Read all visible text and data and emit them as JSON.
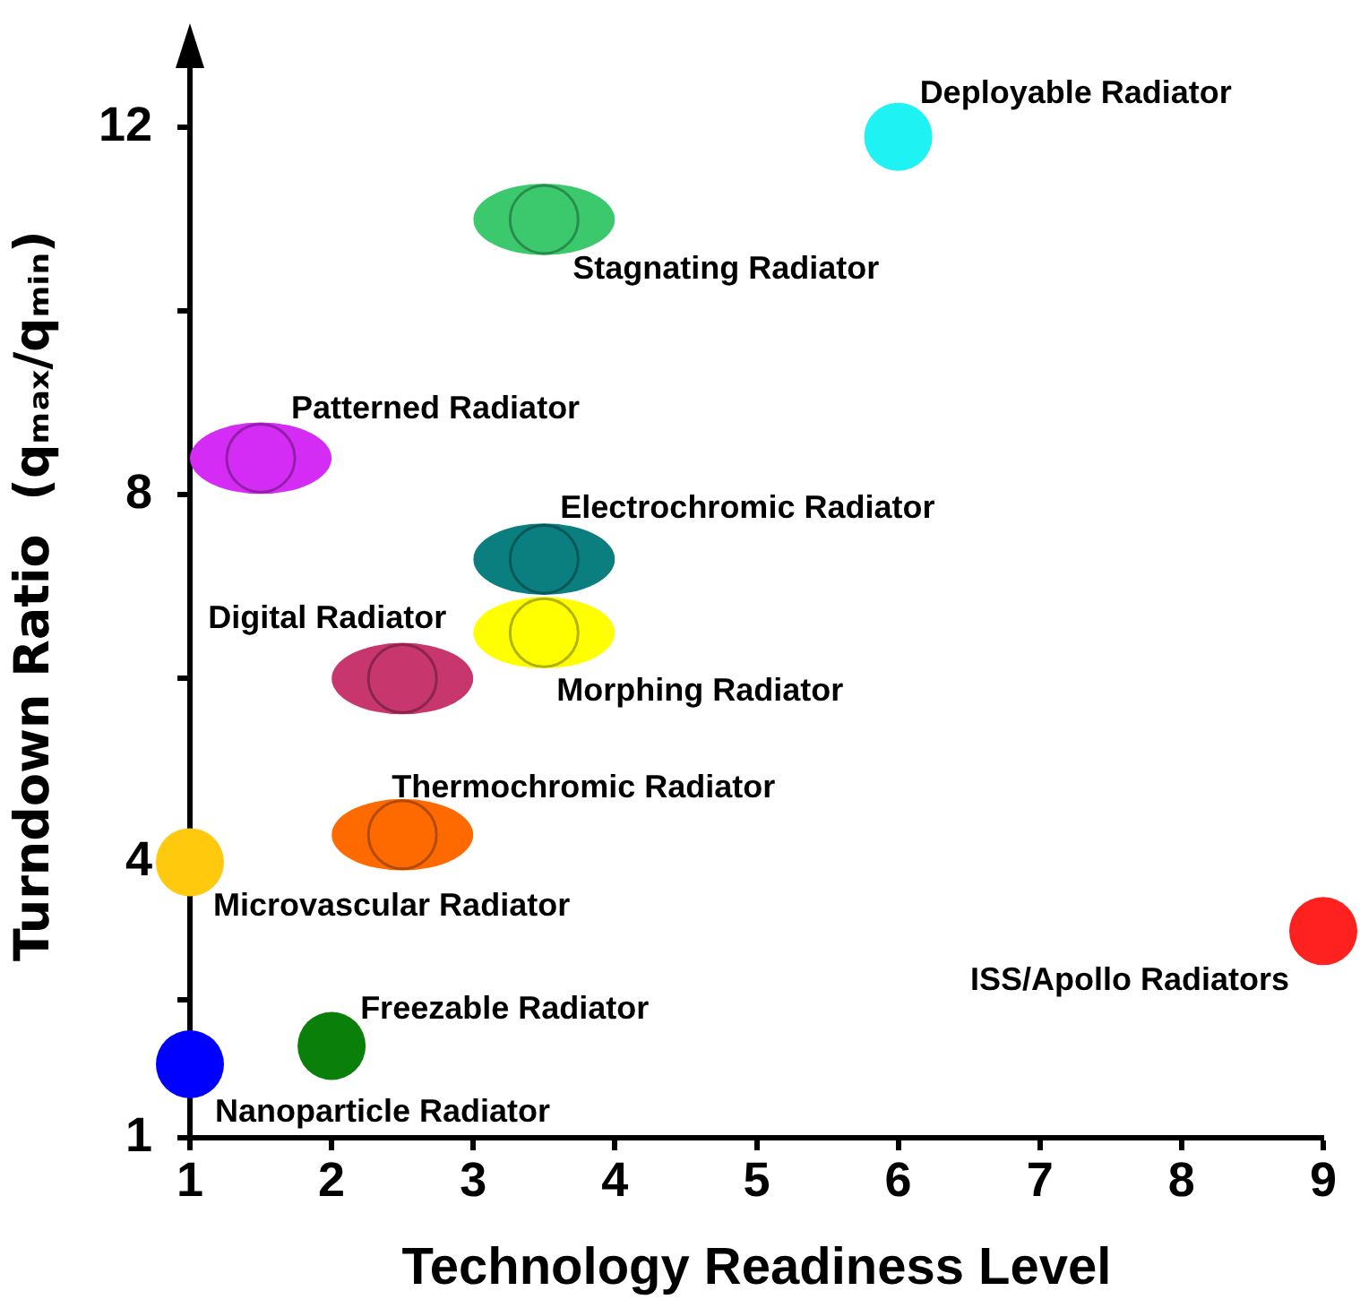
{
  "chart_data": {
    "type": "scatter",
    "xlabel": "Technology Readiness Level",
    "ylabel": "Turndown Ratio  (qₘₐₓ/qₘᵢₙ)",
    "xlim": [
      1,
      9
    ],
    "xticks": [
      1,
      2,
      3,
      4,
      5,
      6,
      7,
      8,
      9
    ],
    "ylim": [
      1,
      12.8
    ],
    "yticks": [
      1,
      {
        "value": 2.5,
        "label": null
      },
      4,
      {
        "value": 6,
        "label": null
      },
      8,
      {
        "value": 10,
        "label": null
      },
      12
    ],
    "grid": false,
    "marker": "circle",
    "series": [
      {
        "name": "Deployable Radiator",
        "color": "#1ef2f2",
        "x": [
          6
        ],
        "values": [
          11.9
        ]
      },
      {
        "name": "Stagnating Radiator",
        "color": "#3cc96e",
        "x": [
          3.5
        ],
        "values": [
          11
        ],
        "xerrors": [
          0.5
        ]
      },
      {
        "name": "Patterned Radiator",
        "color": "#d42cf5",
        "x": [
          1.5
        ],
        "values": [
          8.4
        ],
        "xerrors": [
          0.5
        ]
      },
      {
        "name": "Electrochromic Radiator",
        "color": "#0b7f7f",
        "x": [
          3.5
        ],
        "values": [
          7.3
        ],
        "xerrors": [
          0.5
        ]
      },
      {
        "name": "Morphing Radiator",
        "color": "#ffff00",
        "x": [
          3.5
        ],
        "values": [
          6.5
        ],
        "xerrors": [
          0.5
        ]
      },
      {
        "name": "Digital Radiator",
        "color": "#c8366e",
        "x": [
          2.5
        ],
        "values": [
          6
        ],
        "xerrors": [
          0.5
        ]
      },
      {
        "name": "Thermochromic Radiator",
        "color": "#ff6a00",
        "x": [
          2.5
        ],
        "values": [
          4.3
        ],
        "xerrors": [
          0.5
        ]
      },
      {
        "name": "Microvascular Radiator",
        "color": "#ffc90e",
        "x": [
          1
        ],
        "values": [
          4
        ]
      },
      {
        "name": "ISS/Apollo Radiators",
        "color": "#ff2020",
        "x": [
          9
        ],
        "values": [
          3.25
        ]
      },
      {
        "name": "Freezable Radiator",
        "color": "#0a800a",
        "x": [
          2
        ],
        "values": [
          2
        ]
      },
      {
        "name": "Nanoparticle Radiator",
        "color": "#0000ff",
        "x": [
          1
        ],
        "values": [
          1.8
        ]
      }
    ]
  }
}
